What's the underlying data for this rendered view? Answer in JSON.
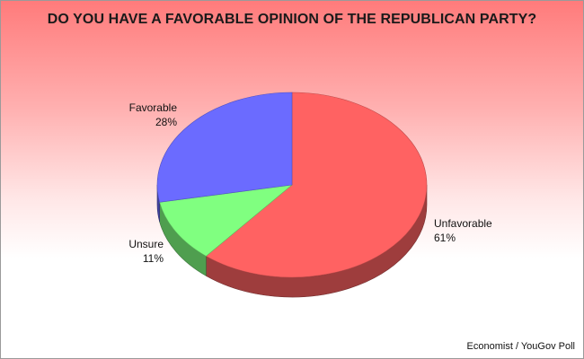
{
  "chart_data": {
    "type": "pie",
    "title": "DO YOU HAVE A FAVORABLE OPINION OF THE REPUBLICAN PARTY?",
    "categories": [
      "Unfavorable",
      "Unsure",
      "Favorable"
    ],
    "values": [
      61,
      11,
      28
    ],
    "value_labels": [
      "61%",
      "11%",
      "28%"
    ],
    "colors": [
      "#ff6262",
      "#80ff80",
      "#6b6bff"
    ],
    "legend": "none",
    "three_d": true
  },
  "source": "Economist / YouGov Poll"
}
